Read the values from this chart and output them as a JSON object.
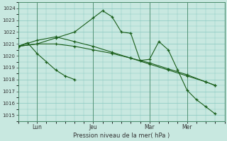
{
  "xlabel": "Pression niveau de la mer( hPa )",
  "bg_color": "#c8e8e0",
  "grid_color": "#88c8c0",
  "line_color": "#1a5e1a",
  "ylim": [
    1014.5,
    1024.5
  ],
  "xtick_labels": [
    "Lun",
    "Jeu",
    "Mar",
    "Mer"
  ],
  "xtick_positions": [
    1,
    4,
    7,
    9
  ],
  "ytick_values": [
    1015,
    1016,
    1017,
    1018,
    1019,
    1020,
    1021,
    1022,
    1023,
    1024
  ],
  "xlim": [
    0,
    11
  ],
  "vline_positions": [
    1,
    4,
    7,
    9
  ],
  "series1_x": [
    0,
    1,
    2,
    3,
    4,
    4.5,
    5,
    5.5,
    6,
    6.5,
    7,
    7.5,
    8,
    8.5,
    9,
    9.5,
    10,
    10.5
  ],
  "series1_y": [
    1020.8,
    1021.0,
    1021.5,
    1022.0,
    1023.2,
    1023.8,
    1023.3,
    1022.0,
    1021.9,
    1019.6,
    1019.7,
    1021.2,
    1020.5,
    1018.8,
    1017.1,
    1016.3,
    1015.7,
    1015.1
  ],
  "series2_x": [
    0,
    1,
    2,
    3,
    4,
    5,
    6,
    7,
    8,
    9,
    10,
    10.5
  ],
  "series2_y": [
    1020.8,
    1021.0,
    1021.0,
    1020.8,
    1020.5,
    1020.2,
    1019.8,
    1019.4,
    1018.9,
    1018.4,
    1017.8,
    1017.5
  ],
  "series3_x": [
    0,
    1,
    2,
    3,
    4,
    5,
    6,
    7,
    8,
    9,
    10,
    10.5
  ],
  "series3_y": [
    1020.8,
    1021.3,
    1021.6,
    1021.2,
    1020.8,
    1020.3,
    1019.8,
    1019.3,
    1018.8,
    1018.3,
    1017.8,
    1017.5
  ],
  "series4_x": [
    0,
    0.5,
    1,
    1.5,
    2,
    2.5,
    3
  ],
  "series4_y": [
    1020.8,
    1021.1,
    1020.2,
    1019.5,
    1018.8,
    1018.3,
    1018.0
  ]
}
